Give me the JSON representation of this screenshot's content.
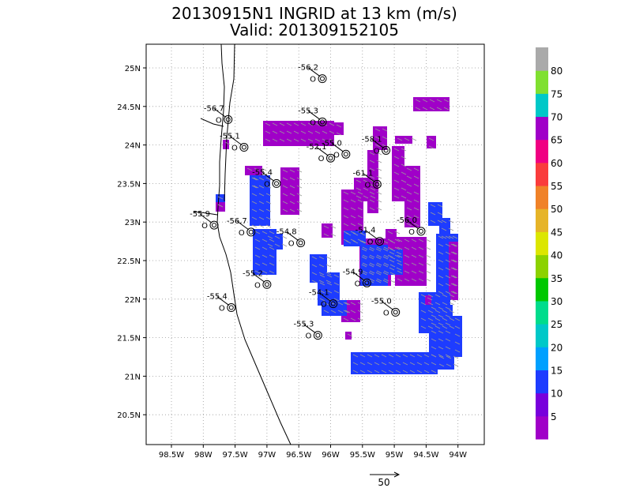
{
  "title_line1": "20130915N1 INGRID at 13 km (m/s)",
  "title_line2": "Valid: 201309152105",
  "lon_ticks": [
    "98.5W",
    "98W",
    "97.5W",
    "97W",
    "96.5W",
    "96W",
    "95.5W",
    "95W",
    "94.5W",
    "94W"
  ],
  "lat_ticks": [
    "25N",
    "24.5N",
    "24N",
    "23.5N",
    "23N",
    "22.5N",
    "22N",
    "21.5N",
    "21N",
    "20.5N"
  ],
  "colorbar": {
    "labels": [
      "5",
      "10",
      "15",
      "20",
      "25",
      "30",
      "35",
      "40",
      "45",
      "50",
      "55",
      "60",
      "65",
      "70",
      "75",
      "80"
    ],
    "colors": [
      "#a000c8",
      "#7800dc",
      "#1e3cff",
      "#00a0ff",
      "#00c8c8",
      "#00dc8c",
      "#00c800",
      "#8cd200",
      "#dce600",
      "#e6b428",
      "#f08228",
      "#fa3c3c",
      "#f00082",
      "#a000c8",
      "#00c8c8",
      "#80e030",
      "#aaaaaa"
    ]
  },
  "vector_scale": {
    "label": "50"
  },
  "stations": [
    {
      "lon": -96.13,
      "lat": 24.86,
      "temp": "-56.2"
    },
    {
      "lon": -97.61,
      "lat": 24.33,
      "temp": "-56.7"
    },
    {
      "lon": -96.13,
      "lat": 24.3,
      "temp": "-55.3"
    },
    {
      "lon": -97.36,
      "lat": 23.97,
      "temp": "-55.1"
    },
    {
      "lon": -95.76,
      "lat": 23.88,
      "temp": "-55.0"
    },
    {
      "lon": -96.0,
      "lat": 23.83,
      "temp": "-52.1"
    },
    {
      "lon": -95.13,
      "lat": 23.93,
      "temp": "-58.1"
    },
    {
      "lon": -96.85,
      "lat": 23.5,
      "temp": "-55.4"
    },
    {
      "lon": -95.27,
      "lat": 23.49,
      "temp": "-61.1"
    },
    {
      "lon": -97.83,
      "lat": 22.96,
      "temp": "-55.9"
    },
    {
      "lon": -97.25,
      "lat": 22.87,
      "temp": "-56.7"
    },
    {
      "lon": -96.47,
      "lat": 22.73,
      "temp": "-54.8"
    },
    {
      "lon": -95.23,
      "lat": 22.75,
      "temp": "-51.4"
    },
    {
      "lon": -94.58,
      "lat": 22.88,
      "temp": "-56.0"
    },
    {
      "lon": -97.0,
      "lat": 22.19,
      "temp": "-55.2"
    },
    {
      "lon": -95.43,
      "lat": 22.21,
      "temp": "-54.9"
    },
    {
      "lon": -97.56,
      "lat": 21.89,
      "temp": "-55.4"
    },
    {
      "lon": -95.96,
      "lat": 21.94,
      "temp": "-54.1"
    },
    {
      "lon": -94.98,
      "lat": 21.83,
      "temp": "-55.0"
    },
    {
      "lon": -96.2,
      "lat": 21.53,
      "temp": "-55.3"
    }
  ]
}
